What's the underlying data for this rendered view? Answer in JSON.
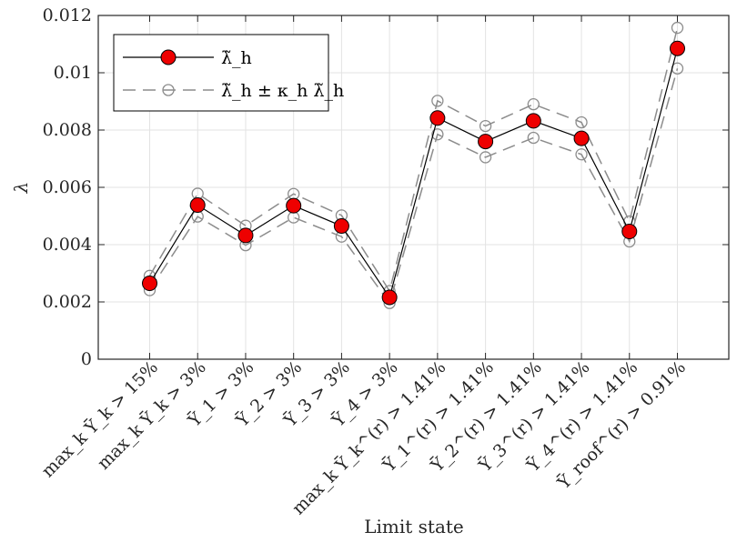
{
  "chart_data": {
    "type": "line",
    "xlabel": "Limit state",
    "ylabel": "λ",
    "ylim": [
      0,
      0.012
    ],
    "yticks": [
      "0",
      "0.002",
      "0.004",
      "0.006",
      "0.008",
      "0.01",
      "0.012"
    ],
    "grid": true,
    "legend_position": "top-left",
    "categories": [
      "max_k Ῡ_k > 15%",
      "max_k Ῡ_k > 3%",
      "Ῡ_1 > 3%",
      "Ῡ_2 > 3%",
      "Ῡ_3 > 3%",
      "Ῡ_4 > 3%",
      "max_k Ῡ_k^(r) > 1.41%",
      "Ῡ_1^(r) > 1.41%",
      "Ῡ_2^(r) > 1.41%",
      "Ῡ_3^(r) > 1.41%",
      "Ῡ_4^(r) > 1.41%",
      "Ῡ_roof^(r) > 0.91%"
    ],
    "series": [
      {
        "name": "λ̃_h",
        "color": "#000000",
        "marker_color": "#ee0000",
        "values": [
          0.00265,
          0.00538,
          0.00432,
          0.00536,
          0.00465,
          0.00216,
          0.00842,
          0.0076,
          0.00832,
          0.00771,
          0.00446,
          0.01085
        ]
      },
      {
        "name": "λ̃_h ± κ_h λ̃_h",
        "color": "#8c8c8c",
        "upper": [
          0.00291,
          0.00578,
          0.00466,
          0.00577,
          0.00502,
          0.00238,
          0.00902,
          0.00814,
          0.0089,
          0.00827,
          0.00481,
          0.01157
        ],
        "lower": [
          0.00241,
          0.00498,
          0.00398,
          0.00495,
          0.00428,
          0.00196,
          0.00785,
          0.00705,
          0.00773,
          0.00715,
          0.00411,
          0.01015
        ]
      }
    ]
  }
}
